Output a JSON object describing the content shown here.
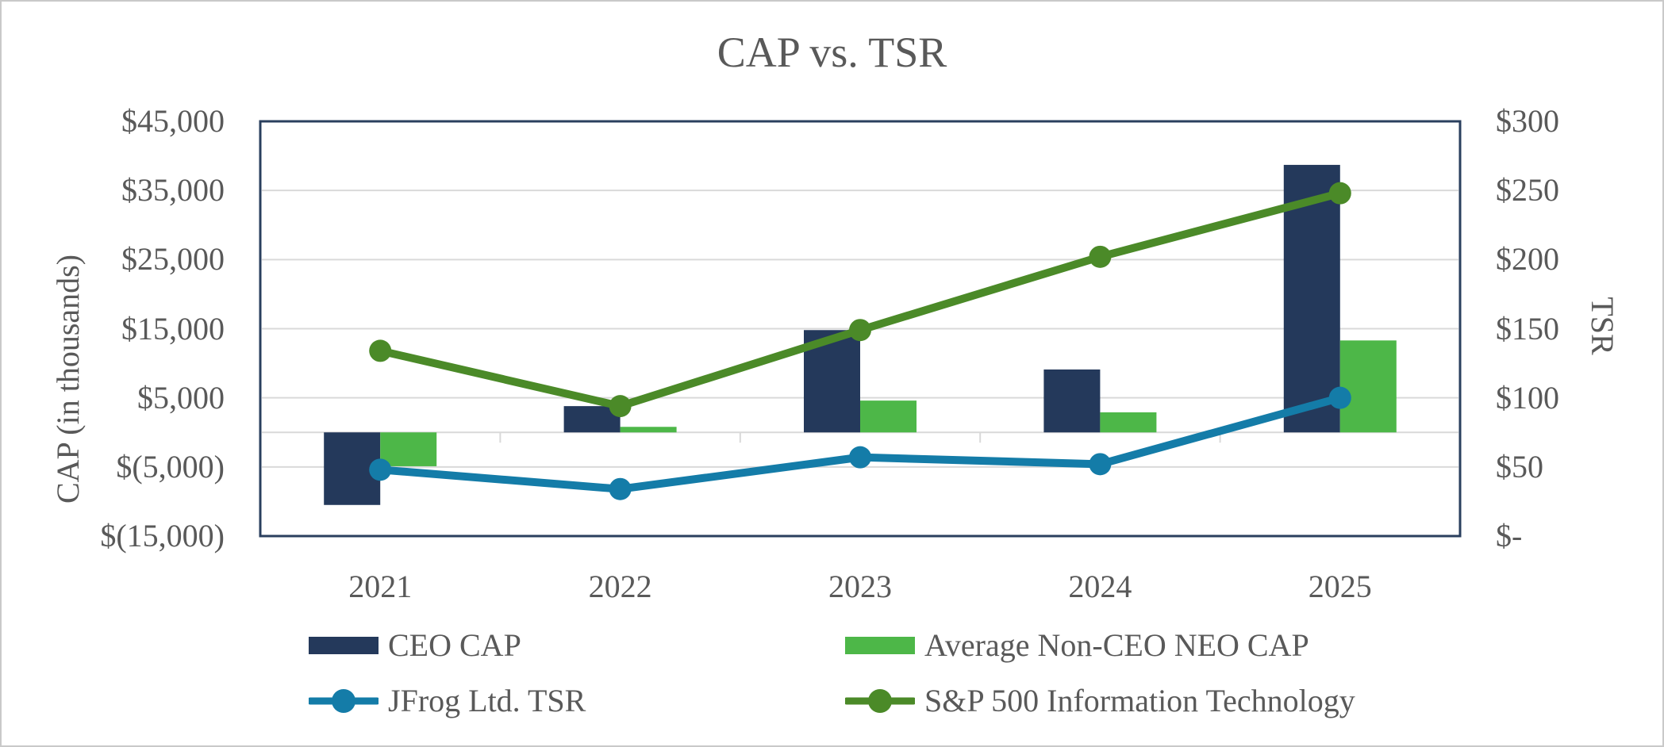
{
  "chart": {
    "title": "CAP vs. TSR",
    "left_axis": {
      "title": "CAP (in thousands)",
      "labels": [
        "$45,000",
        "$35,000",
        "$25,000",
        "$15,000",
        "$5,000",
        "$(5,000)",
        "$(15,000)"
      ],
      "values": [
        45000,
        35000,
        25000,
        15000,
        5000,
        -5000,
        -15000
      ],
      "max": 45000,
      "min": -15000,
      "gridline_values": [
        35000,
        25000,
        15000,
        5000,
        -5000
      ]
    },
    "right_axis": {
      "title": "TSR",
      "labels": [
        "$300",
        "$250",
        "$200",
        "$150",
        "$100",
        "$50",
        "$-"
      ],
      "values": [
        300,
        250,
        200,
        150,
        100,
        50,
        0
      ],
      "max": 300,
      "min": 0
    },
    "colors": {
      "grid": "#D9D9D9",
      "plot_border": "#2A3F5E",
      "text": "#595959",
      "frame": "#C9C9C9"
    }
  },
  "chart_data": {
    "type": "combo",
    "title": "CAP vs. TSR",
    "categories": [
      "2021",
      "2022",
      "2023",
      "2024",
      "2025"
    ],
    "xlabel": "",
    "ylabel_left": "CAP (in thousands)",
    "ylabel_right": "TSR",
    "ylim_left": [
      -15000,
      45000
    ],
    "ylim_right": [
      0,
      300
    ],
    "grid": "on",
    "legend_position": "bottom",
    "series": [
      {
        "name": "CEO CAP",
        "type": "bar",
        "axis": "left",
        "color": "#24395B",
        "values": [
          -10500,
          3800,
          14800,
          9100,
          38700
        ]
      },
      {
        "name": "Average Non-CEO NEO CAP",
        "type": "bar",
        "axis": "left",
        "color": "#4DB748",
        "values": [
          -4900,
          800,
          4600,
          2900,
          13300
        ]
      },
      {
        "name": "JFrog Ltd. TSR",
        "type": "line",
        "axis": "right",
        "color": "#147CA8",
        "values": [
          48,
          34,
          57,
          52,
          100
        ]
      },
      {
        "name": "S&P 500 Information Technology",
        "type": "line",
        "axis": "right",
        "color": "#4B8A28",
        "values": [
          134,
          94,
          149,
          202,
          248
        ]
      }
    ]
  }
}
